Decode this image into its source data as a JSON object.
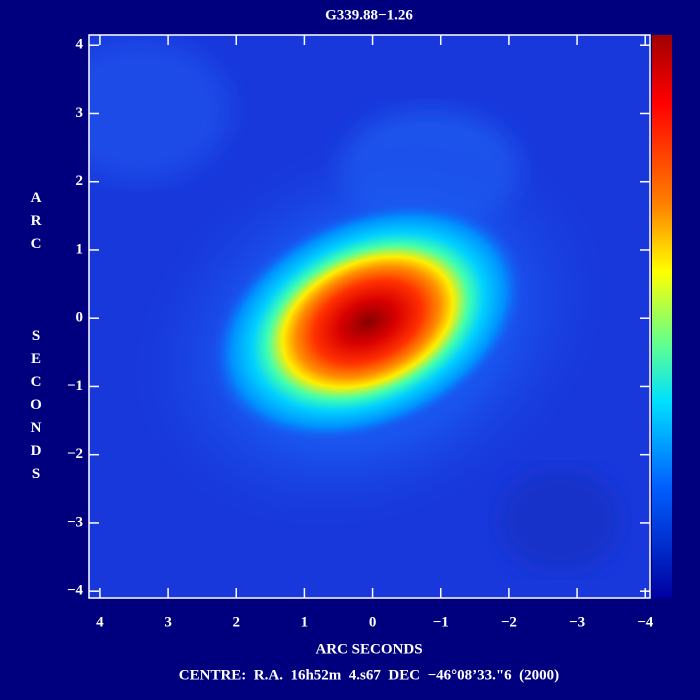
{
  "chart_data": {
    "type": "image",
    "title": "G339.88−1.26",
    "x_label": "ARC SECONDS",
    "y_label": "ARC   SECONDS",
    "footer": "CENTRE:  R.A.  16h52m  4.s67  DEC  −46°08’33.\"6  (2000)",
    "xlim": [
      4.16,
      -4.07
    ],
    "ylim": [
      -4.1,
      4.15
    ],
    "xticks": [
      4,
      3,
      2,
      1,
      0,
      {
        "value": -1,
        "label": "−1"
      },
      {
        "value": -2,
        "label": "−2"
      },
      {
        "value": -3,
        "label": "−3"
      },
      {
        "value": -4,
        "label": "−4"
      }
    ],
    "yticks": [
      {
        "value": -4,
        "label": "−4"
      },
      {
        "value": -3,
        "label": "−3"
      },
      {
        "value": -2,
        "label": "−2"
      },
      {
        "value": -1,
        "label": "−1"
      },
      0,
      1,
      2,
      3,
      4
    ],
    "colorbar": true
  }
}
